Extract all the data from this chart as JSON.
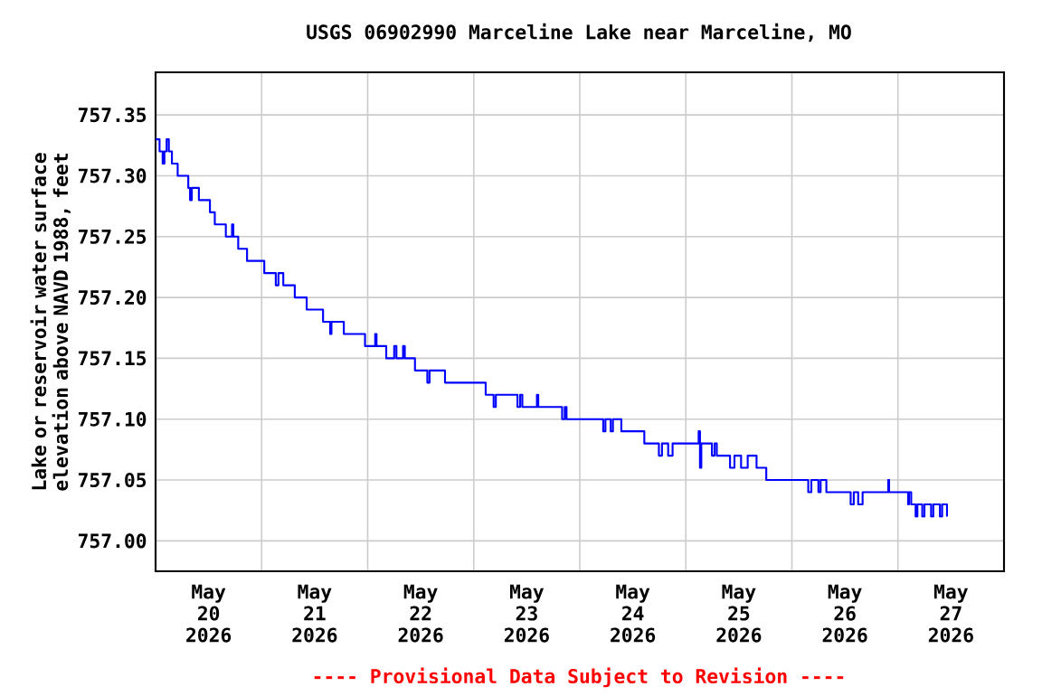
{
  "chart_data": {
    "type": "step",
    "title": "USGS 06902990 Marceline Lake near Marceline, MO",
    "ylabel": "Lake or reservoir water surface elevation above NAVD 1988, feet",
    "annotations": [
      "---- Provisional Data Subject to Revision ----"
    ],
    "xlim": [
      "2026-05-20T00:00",
      "2026-05-28T00:00"
    ],
    "xticks": [
      {
        "value": "2026-05-20T12:00",
        "label": "May 20 2026"
      },
      {
        "value": "2026-05-21T00:00",
        "label": null
      },
      {
        "value": "2026-05-21T12:00",
        "label": "May 21 2026"
      },
      {
        "value": "2026-05-22T00:00",
        "label": null
      },
      {
        "value": "2026-05-22T12:00",
        "label": "May 22 2026"
      },
      {
        "value": "2026-05-23T00:00",
        "label": null
      },
      {
        "value": "2026-05-23T12:00",
        "label": "May 23 2026"
      },
      {
        "value": "2026-05-24T00:00",
        "label": null
      },
      {
        "value": "2026-05-24T12:00",
        "label": "May 24 2026"
      },
      {
        "value": "2026-05-25T00:00",
        "label": null
      },
      {
        "value": "2026-05-25T12:00",
        "label": "May 25 2026"
      },
      {
        "value": "2026-05-26T00:00",
        "label": null
      },
      {
        "value": "2026-05-26T12:00",
        "label": "May 26 2026"
      },
      {
        "value": "2026-05-27T00:00",
        "label": null
      },
      {
        "value": "2026-05-27T12:00",
        "label": "May 27 2026"
      }
    ],
    "ylim": [
      756.975,
      757.385
    ],
    "yticks": [
      {
        "value": 757.0,
        "label": "757.00"
      },
      {
        "value": 757.05,
        "label": "757.05"
      },
      {
        "value": 757.1,
        "label": "757.10"
      },
      {
        "value": 757.15,
        "label": "757.15"
      },
      {
        "value": 757.2,
        "label": "757.20"
      },
      {
        "value": 757.25,
        "label": "757.25"
      },
      {
        "value": 757.3,
        "label": "757.30"
      },
      {
        "value": 757.35,
        "label": "757.35"
      }
    ],
    "grid": true,
    "series": [
      {
        "color": "#0000ff",
        "x": [
          "2026-05-20T00:00",
          "2026-05-20T00:54",
          "2026-05-20T01:36",
          "2026-05-20T02:00",
          "2026-05-20T02:30",
          "2026-05-20T03:00",
          "2026-05-20T03:42",
          "2026-05-20T05:00",
          "2026-05-20T07:24",
          "2026-05-20T07:48",
          "2026-05-20T08:12",
          "2026-05-20T09:48",
          "2026-05-20T12:18",
          "2026-05-20T13:24",
          "2026-05-20T15:54",
          "2026-05-20T17:18",
          "2026-05-20T17:36",
          "2026-05-20T18:42",
          "2026-05-20T20:42",
          "2026-05-21T00:36",
          "2026-05-21T03:12",
          "2026-05-21T03:48",
          "2026-05-21T04:54",
          "2026-05-21T07:30",
          "2026-05-21T10:12",
          "2026-05-21T13:54",
          "2026-05-21T15:30",
          "2026-05-21T15:48",
          "2026-05-21T18:36",
          "2026-05-21T23:24",
          "2026-05-22T01:42",
          "2026-05-22T02:00",
          "2026-05-22T04:12",
          "2026-05-22T06:00",
          "2026-05-22T06:30",
          "2026-05-22T08:00",
          "2026-05-22T08:24",
          "2026-05-22T10:42",
          "2026-05-22T13:30",
          "2026-05-22T14:00",
          "2026-05-22T17:30",
          "2026-05-23T02:42",
          "2026-05-23T04:30",
          "2026-05-23T05:00",
          "2026-05-23T09:54",
          "2026-05-23T10:30",
          "2026-05-23T11:00",
          "2026-05-23T14:18",
          "2026-05-23T14:36",
          "2026-05-23T20:00",
          "2026-05-23T20:36",
          "2026-05-23T21:00",
          "2026-05-24T05:18",
          "2026-05-24T05:48",
          "2026-05-24T07:00",
          "2026-05-24T07:30",
          "2026-05-24T09:24",
          "2026-05-24T14:36",
          "2026-05-24T17:54",
          "2026-05-24T18:36",
          "2026-05-24T20:00",
          "2026-05-24T21:00",
          "2026-05-25T02:54",
          "2026-05-25T03:12",
          "2026-05-25T03:30",
          "2026-05-25T05:54",
          "2026-05-25T06:30",
          "2026-05-25T07:00",
          "2026-05-25T10:00",
          "2026-05-25T11:00",
          "2026-05-25T12:30",
          "2026-05-25T14:00",
          "2026-05-25T16:00",
          "2026-05-25T18:12",
          "2026-05-26T03:42",
          "2026-05-26T04:24",
          "2026-05-26T06:00",
          "2026-05-26T06:30",
          "2026-05-26T07:48",
          "2026-05-26T13:18",
          "2026-05-26T14:00",
          "2026-05-26T15:00",
          "2026-05-26T16:00",
          "2026-05-26T21:48",
          "2026-05-26T22:00",
          "2026-05-27T02:18",
          "2026-05-27T02:30",
          "2026-05-27T03:00",
          "2026-05-27T04:00",
          "2026-05-27T04:24",
          "2026-05-27T05:30",
          "2026-05-27T06:00",
          "2026-05-27T07:30",
          "2026-05-27T08:00",
          "2026-05-27T09:30",
          "2026-05-27T10:00",
          "2026-05-27T11:06"
        ],
        "values": [
          757.33,
          757.32,
          757.31,
          757.32,
          757.33,
          757.32,
          757.31,
          757.3,
          757.29,
          757.28,
          757.29,
          757.28,
          757.27,
          757.26,
          757.25,
          757.26,
          757.25,
          757.24,
          757.23,
          757.22,
          757.21,
          757.22,
          757.21,
          757.2,
          757.19,
          757.18,
          757.17,
          757.18,
          757.17,
          757.16,
          757.17,
          757.16,
          757.15,
          757.16,
          757.15,
          757.16,
          757.15,
          757.14,
          757.13,
          757.14,
          757.13,
          757.12,
          757.11,
          757.12,
          757.11,
          757.12,
          757.11,
          757.12,
          757.11,
          757.1,
          757.11,
          757.1,
          757.09,
          757.1,
          757.09,
          757.1,
          757.09,
          757.08,
          757.07,
          757.08,
          757.07,
          757.08,
          757.09,
          757.06,
          757.08,
          757.07,
          757.08,
          757.07,
          757.06,
          757.07,
          757.06,
          757.07,
          757.06,
          757.05,
          757.04,
          757.05,
          757.04,
          757.05,
          757.04,
          757.03,
          757.04,
          757.03,
          757.04,
          757.05,
          757.04,
          757.03,
          757.04,
          757.03,
          757.02,
          757.03,
          757.02,
          757.03,
          757.02,
          757.03,
          757.02,
          757.03,
          757.02
        ]
      }
    ]
  }
}
